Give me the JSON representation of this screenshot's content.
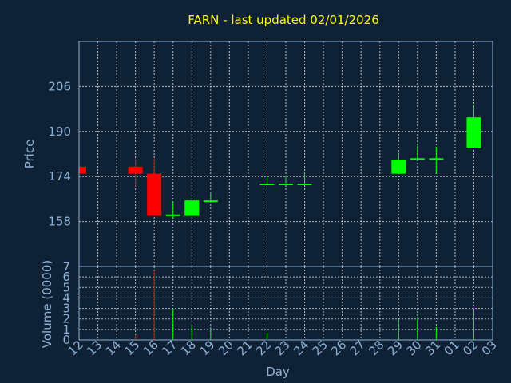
{
  "chart_data": {
    "type": "candlestick",
    "title": "FARN - last updated 02/01/2026",
    "xlabel": "Day",
    "colors": {
      "background": "#0f2134",
      "up": "#00ff00",
      "down": "#ff0000",
      "title": "#ffff00",
      "axis": "#8fb3d9"
    },
    "x_tick_labels": [
      "12",
      "13",
      "14",
      "15",
      "16",
      "17",
      "18",
      "19",
      "20",
      "21",
      "22",
      "23",
      "24",
      "25",
      "26",
      "27",
      "28",
      "29",
      "30",
      "31",
      "01",
      "02",
      "03"
    ],
    "price_panel": {
      "ylabel": "Price",
      "ylim": [
        142,
        222
      ],
      "yticks": [
        158,
        174,
        190,
        206
      ],
      "grid": true
    },
    "volume_panel": {
      "ylabel": "Volume (0000)",
      "ylim": [
        0,
        7
      ],
      "yticks": [
        0,
        1,
        2,
        3,
        4,
        5,
        6,
        7
      ],
      "grid": true
    },
    "candles": [
      {
        "day": "12",
        "open": 177.5,
        "high": 177.5,
        "low": 175.0,
        "close": 175.0,
        "volume": 0.0
      },
      {
        "day": "15",
        "open": 177.5,
        "high": 180.5,
        "low": 170.5,
        "close": 175.0,
        "volume": 0.5
      },
      {
        "day": "16",
        "open": 175.0,
        "high": 180.5,
        "low": 160.0,
        "close": 160.0,
        "volume": 6.6
      },
      {
        "day": "17",
        "open": 160.0,
        "high": 165.0,
        "low": 159.0,
        "close": 160.5,
        "volume": 3.0
      },
      {
        "day": "18",
        "open": 160.0,
        "high": 165.5,
        "low": 160.0,
        "close": 165.5,
        "volume": 1.3
      },
      {
        "day": "19",
        "open": 165.0,
        "high": 168.5,
        "low": 165.0,
        "close": 165.5,
        "volume": 1.0
      },
      {
        "day": "22",
        "open": 171.0,
        "high": 174.0,
        "low": 171.0,
        "close": 171.5,
        "volume": 0.7
      },
      {
        "day": "23",
        "open": 171.0,
        "high": 174.0,
        "low": 171.0,
        "close": 171.5,
        "volume": 0.0
      },
      {
        "day": "24",
        "open": 171.0,
        "high": 175.5,
        "low": 171.0,
        "close": 171.5,
        "volume": 0.0
      },
      {
        "day": "29",
        "open": 175.0,
        "high": 182.5,
        "low": 175.0,
        "close": 180.0,
        "volume": 2.0
      },
      {
        "day": "30",
        "open": 180.0,
        "high": 185.0,
        "low": 180.0,
        "close": 180.5,
        "volume": 2.2
      },
      {
        "day": "31",
        "open": 180.0,
        "high": 184.5,
        "low": 175.0,
        "close": 180.5,
        "volume": 1.1
      },
      {
        "day": "02",
        "open": 184.0,
        "high": 199.0,
        "low": 184.0,
        "close": 195.0,
        "volume": 3.0
      }
    ]
  }
}
